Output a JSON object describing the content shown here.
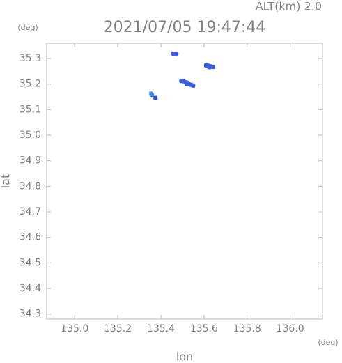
{
  "chart_data": {
    "type": "scatter",
    "title": "2021/07/05 19:47:44",
    "subtitle": "ALT(km) 2.0",
    "y_unit": "(deg)",
    "x_unit": "(deg)",
    "xlabel": "lon",
    "ylabel": "lat",
    "xlim": [
      134.87,
      136.15
    ],
    "ylim": [
      34.28,
      35.36
    ],
    "xticks": [
      {
        "value": 135.0,
        "label": "135.0"
      },
      135.2,
      135.4,
      135.6,
      135.8,
      {
        "value": 136.0,
        "label": "136.0"
      }
    ],
    "yticks": [
      35.3,
      35.2,
      35.1,
      {
        "value": 35.0,
        "label": "35.0"
      },
      34.9,
      34.8,
      34.7,
      34.6,
      34.5,
      34.4,
      34.3
    ],
    "x": [
      135.457,
      135.465,
      135.472,
      135.61,
      135.62,
      135.63,
      135.64,
      135.625,
      135.495,
      135.505,
      135.515,
      135.525,
      135.53,
      135.54,
      135.55,
      135.52,
      135.355,
      135.358,
      135.375
    ],
    "values": [
      35.319,
      35.319,
      35.318,
      35.273,
      35.272,
      35.269,
      35.267,
      35.266,
      35.212,
      35.211,
      35.207,
      35.205,
      35.2,
      35.197,
      35.194,
      35.2,
      35.163,
      35.158,
      35.146
    ],
    "colors": [
      "#3f5fe0",
      "#3f5fe0",
      "#3f5fe0",
      "#3f5fe0",
      "#3f5fe0",
      "#3f5fe0",
      "#3f5fe0",
      "#3f5fe0",
      "#3f5fe0",
      "#3f5fe0",
      "#3f5fe0",
      "#3f5fe0",
      "#3f5fe0",
      "#3f5fe0",
      "#3f5fe0",
      "#3f5fe0",
      "#35a8ee",
      "#3f7fe8",
      "#2a4ad0"
    ]
  }
}
